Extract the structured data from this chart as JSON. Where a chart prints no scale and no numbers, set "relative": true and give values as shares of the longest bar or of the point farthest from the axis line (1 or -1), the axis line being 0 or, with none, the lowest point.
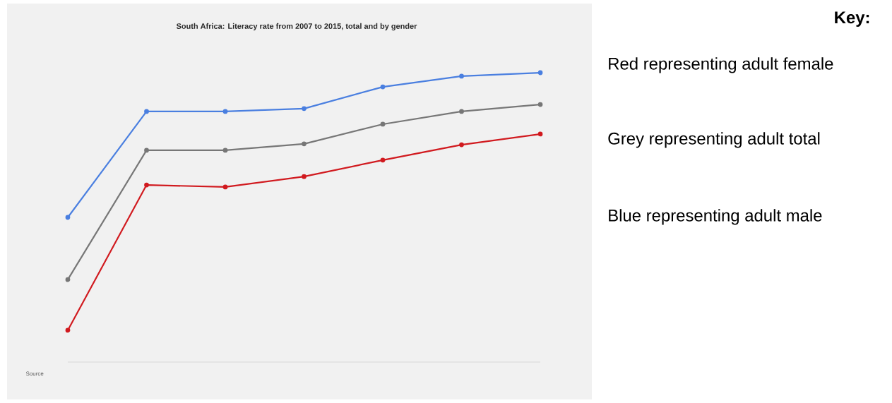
{
  "chart_data": {
    "type": "line",
    "title": "South Africa: Literacy rate from 2007 to 2015, total and by gender",
    "relative": true,
    "marker": "circle",
    "line_style": "solid",
    "categories": [
      null,
      null,
      null,
      null,
      null,
      null,
      null
    ],
    "series": [
      {
        "color": "#4a7fe0",
        "values": [
          0.5,
          0.866,
          0.866,
          0.876,
          0.951,
          0.988,
          1
        ]
      },
      {
        "color": "#777777",
        "values": [
          0.285,
          0.732,
          0.732,
          0.754,
          0.822,
          0.866,
          0.89
        ]
      },
      {
        "color": "#d11a1f",
        "values": [
          0.11,
          0.612,
          0.605,
          0.641,
          0.698,
          0.751,
          0.788
        ]
      }
    ],
    "annotations": [
      "Source",
      "Key:",
      "Red representing adult female",
      "Grey representing adult total",
      "Blue representing adult male"
    ]
  }
}
